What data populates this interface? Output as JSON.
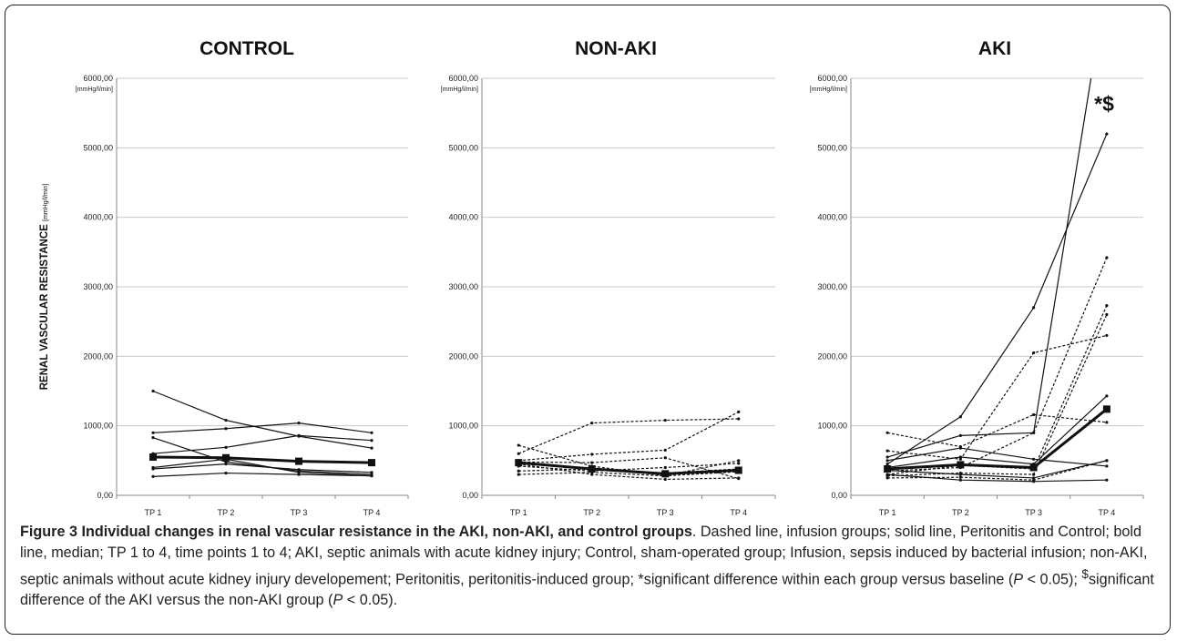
{
  "chart_data": [
    {
      "type": "line",
      "title": "CONTROL",
      "ylabel": "RENAL VASCULAR RESISTANCE",
      "ylabel_unit": "[mmHg/l/min]",
      "yunit": "[mmHg/l/min]",
      "categories": [
        "TP 1",
        "TP 2",
        "TP 3",
        "TP 4"
      ],
      "ylim": [
        0,
        6000
      ],
      "yticks": [
        "0,00",
        "1000,00",
        "2000,00",
        "3000,00",
        "4000,00",
        "5000,00",
        "6000,00"
      ],
      "annotation": "",
      "series": [
        {
          "style": "solid",
          "values": [
            1500,
            1080,
            850,
            680
          ]
        },
        {
          "style": "solid",
          "values": [
            900,
            960,
            1040,
            900
          ]
        },
        {
          "style": "solid",
          "values": [
            830,
            480,
            350,
            300
          ]
        },
        {
          "style": "solid",
          "values": [
            600,
            690,
            860,
            790
          ]
        },
        {
          "style": "solid",
          "values": [
            400,
            520,
            330,
            280
          ]
        },
        {
          "style": "solid",
          "values": [
            380,
            450,
            370,
            330
          ]
        },
        {
          "style": "solid",
          "values": [
            270,
            320,
            300,
            280
          ]
        },
        {
          "style": "bold",
          "values": [
            550,
            540,
            490,
            470
          ]
        }
      ]
    },
    {
      "type": "line",
      "title": "NON-AKI",
      "ylabel": "",
      "yunit": "[mmHg/l/min]",
      "categories": [
        "TP 1",
        "TP 2",
        "TP 3",
        "TP 4"
      ],
      "ylim": [
        0,
        6000
      ],
      "yticks": [
        "0,00",
        "1000,00",
        "2000,00",
        "3000,00",
        "4000,00",
        "5000,00",
        "6000,00"
      ],
      "annotation": "",
      "series": [
        {
          "style": "dashed",
          "values": [
            600,
            1040,
            1080,
            1100
          ]
        },
        {
          "style": "dashed",
          "values": [
            500,
            590,
            650,
            1200
          ]
        },
        {
          "style": "dashed",
          "values": [
            720,
            420,
            280,
            500
          ]
        },
        {
          "style": "dashed",
          "values": [
            480,
            470,
            540,
            240
          ]
        },
        {
          "style": "dashed",
          "values": [
            450,
            300,
            230,
            250
          ]
        },
        {
          "style": "dashed",
          "values": [
            420,
            350,
            400,
            460
          ]
        },
        {
          "style": "dashed",
          "values": [
            350,
            380,
            320,
            380
          ]
        },
        {
          "style": "dashed",
          "values": [
            300,
            330,
            280,
            340
          ]
        },
        {
          "style": "bold",
          "values": [
            470,
            380,
            310,
            360
          ]
        }
      ]
    },
    {
      "type": "line",
      "title": "AKI",
      "ylabel": "",
      "yunit": "[mmHg/l/min]",
      "categories": [
        "TP 1",
        "TP 2",
        "TP 3",
        "TP 4"
      ],
      "ylim": [
        0,
        6000
      ],
      "yticks": [
        "0,00",
        "1000,00",
        "2000,00",
        "3000,00",
        "4000,00",
        "5000,00",
        "6000,00"
      ],
      "annotation": "*$",
      "series": [
        {
          "style": "solid",
          "values": [
            450,
            1130,
            2700,
            5200
          ]
        },
        {
          "style": "solid",
          "values": [
            550,
            860,
            900,
            7400
          ]
        },
        {
          "style": "solid",
          "values": [
            400,
            550,
            450,
            1430
          ]
        },
        {
          "style": "solid",
          "values": [
            360,
            300,
            250,
            500
          ]
        },
        {
          "style": "solid",
          "values": [
            300,
            220,
            200,
            220
          ]
        },
        {
          "style": "solid",
          "values": [
            500,
            680,
            520,
            420
          ]
        },
        {
          "style": "dashed",
          "values": [
            900,
            700,
            1160,
            1050
          ]
        },
        {
          "style": "dashed",
          "values": [
            640,
            520,
            2050,
            2300
          ]
        },
        {
          "style": "dashed",
          "values": [
            350,
            400,
            900,
            3420
          ]
        },
        {
          "style": "dashed",
          "values": [
            300,
            430,
            380,
            2730
          ]
        },
        {
          "style": "dashed",
          "values": [
            280,
            320,
            300,
            2600
          ]
        },
        {
          "style": "dashed",
          "values": [
            250,
            260,
            220,
            500
          ]
        },
        {
          "style": "bold",
          "values": [
            380,
            440,
            400,
            1240
          ]
        }
      ]
    }
  ],
  "caption": {
    "title": "Figure 3 Individual changes in renal vascular resistance in the AKI, non-AKI, and control groups",
    "text_1": ". Dashed line, infusion groups; solid line, Peritonitis and Control; bold line, median; TP 1 to 4, time points 1 to 4; AKI, septic animals with acute kidney injury; Control, sham-operated group; Infusion, sepsis induced by bacterial infusion; non-AKI, septic animals without acute kidney injury developement; Peritonitis, peritonitis-induced group; *significant difference within each group versus baseline (",
    "p_symbol": "P",
    "text_2": " < 0.05); ",
    "superscript": "$",
    "text_3": "significant difference of the AKI versus the non-AKI group (",
    "p_symbol_2": "P",
    "text_4": " < 0.05)."
  }
}
